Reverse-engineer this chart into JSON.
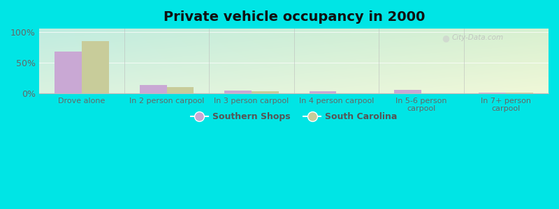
{
  "title": "Private vehicle occupancy in 2000",
  "categories": [
    "Drove alone",
    "In 2 person carpool",
    "In 3 person carpool",
    "In 4 person carpool",
    "In 5-6 person\ncarpool",
    "In 7+ person\ncarpool"
  ],
  "southern_shops": [
    0.675,
    0.135,
    0.045,
    0.038,
    0.055,
    0.018
  ],
  "south_carolina": [
    0.845,
    0.105,
    0.033,
    0.005,
    0.003,
    0.008
  ],
  "color_southern": "#c9a8d4",
  "color_sc": "#c8cc9a",
  "ylim": [
    0,
    1.05
  ],
  "yticks": [
    0,
    0.5,
    1.0
  ],
  "ytick_labels": [
    "0%",
    "50%",
    "100%"
  ],
  "bg_outer": "#00e5e5",
  "legend_southern": "Southern Shops",
  "legend_sc": "South Carolina",
  "title_fontsize": 14,
  "bar_width": 0.32,
  "watermark": "City-Data.com"
}
